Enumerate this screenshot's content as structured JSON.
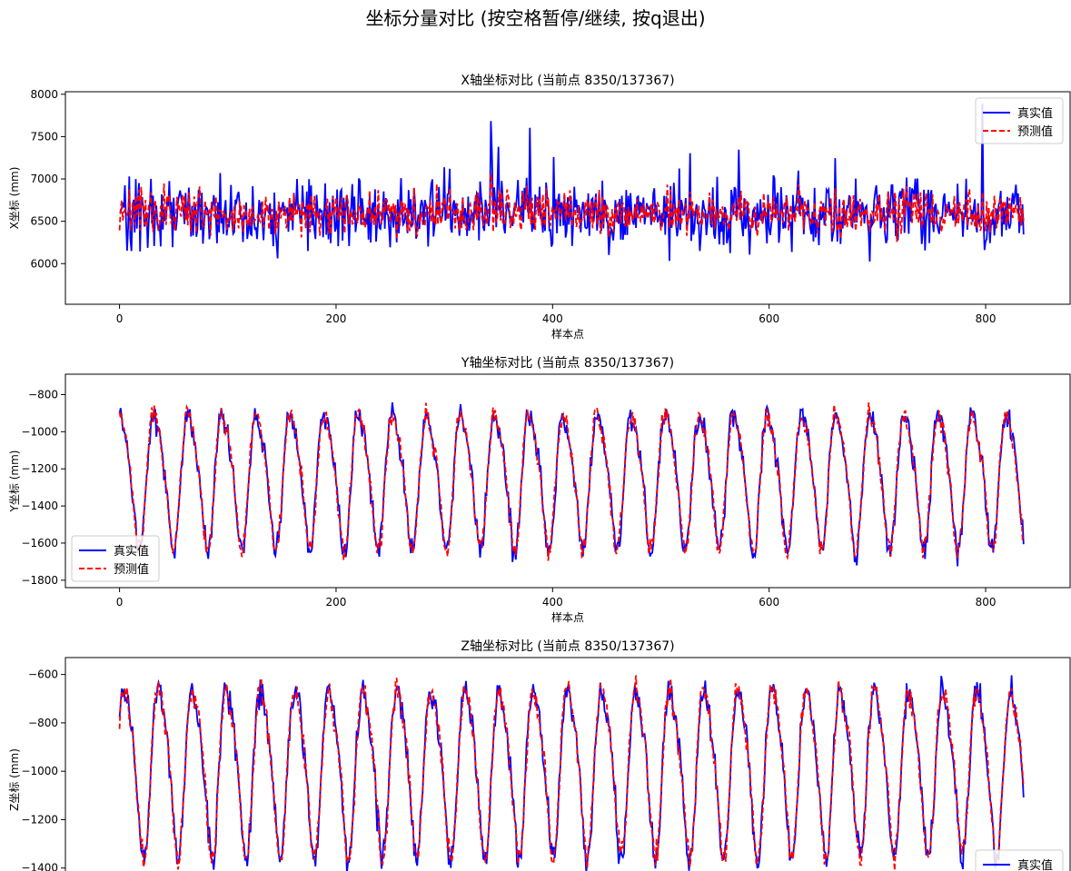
{
  "title": "坐标分量对比 (按空格暂停/继续, 按q退出)",
  "legend_labels": {
    "true": "真实值",
    "pred": "预测值"
  },
  "colors": {
    "true": "#0000ff",
    "pred": "#ff0000",
    "axes": "#000000"
  },
  "chart_data": [
    {
      "type": "line",
      "axis": "x",
      "title": "X轴坐标对比 (当前点 8350/137367)",
      "xlabel": "样本点",
      "ylabel": "X坐标 (mm)",
      "xlim": [
        -50,
        878
      ],
      "ylim": [
        5520,
        8030
      ],
      "xticks": [
        0,
        200,
        400,
        600,
        800
      ],
      "yticks": [
        6000,
        6500,
        7000,
        7500,
        8000
      ],
      "legend_loc": "upper right",
      "n_points": 836,
      "signal": {
        "kind": "noise",
        "mean": 6600,
        "spread_true": 300,
        "spread_pred": 170,
        "period": 0,
        "phase": 0
      },
      "series": [
        {
          "name": "真实值",
          "style": "solid",
          "color": "#0000ff"
        },
        {
          "name": "预测值",
          "style": "dashed",
          "color": "#ff0000"
        }
      ]
    },
    {
      "type": "line",
      "axis": "y",
      "title": "Y轴坐标对比 (当前点 8350/137367)",
      "xlabel": "样本点",
      "ylabel": "Y坐标 (mm)",
      "xlim": [
        -50,
        878
      ],
      "ylim": [
        -1840,
        -690
      ],
      "xticks": [
        0,
        200,
        400,
        600,
        800
      ],
      "yticks": [
        -1800,
        -1600,
        -1400,
        -1200,
        -1000,
        -800
      ],
      "legend_loc": "lower left",
      "n_points": 836,
      "signal": {
        "kind": "periodic",
        "center": -1240,
        "amplitude": 380,
        "period": 31.5,
        "phase": 1.2,
        "spread_true": 50,
        "spread_pred": 40
      },
      "series": [
        {
          "name": "真实值",
          "style": "solid",
          "color": "#0000ff"
        },
        {
          "name": "预测值",
          "style": "dashed",
          "color": "#ff0000"
        }
      ]
    },
    {
      "type": "line",
      "axis": "z",
      "title": "Z轴坐标对比 (当前点 8350/137367)",
      "xlabel": "",
      "ylabel": "Z坐标 (mm)",
      "xlim": [
        -50,
        878
      ],
      "ylim": [
        -1540,
        -530
      ],
      "xticks": [],
      "yticks": [
        -1400,
        -1200,
        -1000,
        -800,
        -600
      ],
      "legend_loc": "lower right",
      "n_points": 836,
      "signal": {
        "kind": "periodic",
        "center": -980,
        "amplitude": 360,
        "period": 31.5,
        "phase": 0.4,
        "spread_true": 45,
        "spread_pred": 38
      },
      "series": [
        {
          "name": "真实值",
          "style": "solid",
          "color": "#0000ff"
        },
        {
          "name": "预测值",
          "style": "dashed",
          "color": "#ff0000"
        }
      ]
    }
  ]
}
